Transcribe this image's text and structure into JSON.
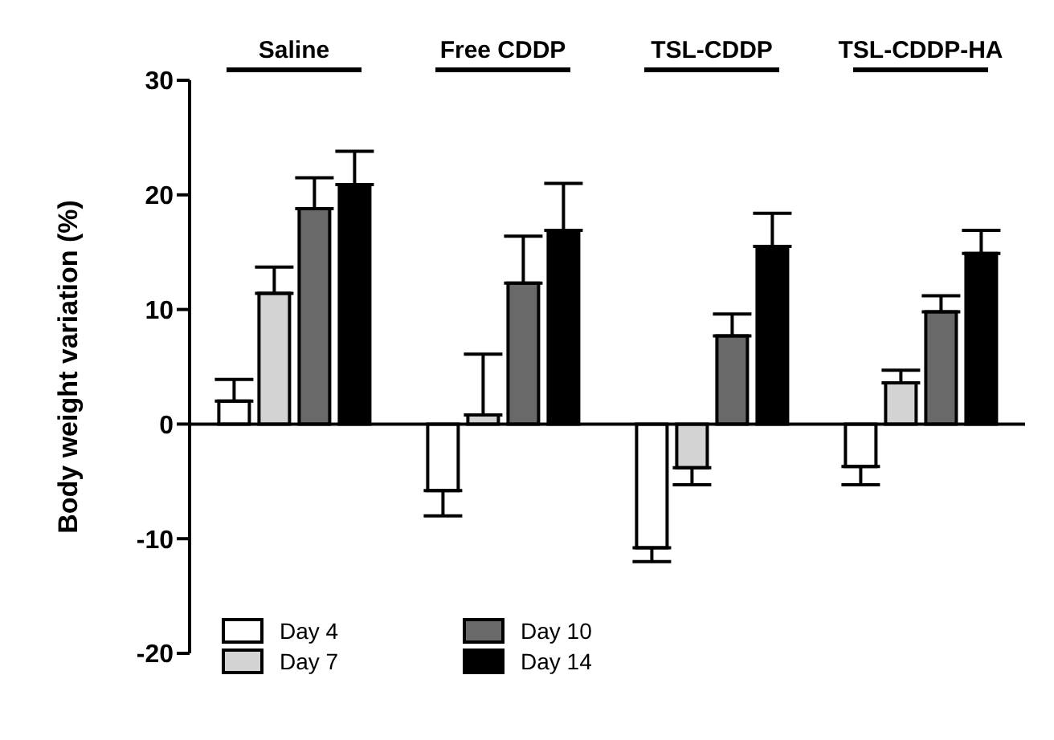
{
  "chart_data": {
    "type": "bar",
    "ylabel": "Body weight variation (%)",
    "categories": [
      "Saline",
      "Free CDDP",
      "TSL-CDDP",
      "TSL-CDDP-HA"
    ],
    "series": [
      {
        "name": "Day 4",
        "color": "#ffffff",
        "values": [
          2.0,
          -5.8,
          -10.8,
          -3.7
        ],
        "errors": [
          [
            2.0,
            3.9
          ],
          [
            -8.0,
            -5.8
          ],
          [
            -12.0,
            -10.8
          ],
          [
            -5.3,
            -3.7
          ]
        ]
      },
      {
        "name": "Day 7",
        "color": "#d3d3d3",
        "values": [
          11.4,
          0.8,
          -3.8,
          3.6
        ],
        "errors": [
          [
            11.4,
            13.7
          ],
          [
            0.8,
            6.1
          ],
          [
            -5.3,
            -3.8
          ],
          [
            3.6,
            4.7
          ]
        ]
      },
      {
        "name": "Day 10",
        "color": "#696969",
        "values": [
          18.8,
          12.3,
          7.7,
          9.8
        ],
        "errors": [
          [
            18.8,
            21.5
          ],
          [
            12.3,
            16.4
          ],
          [
            7.7,
            9.6
          ],
          [
            9.8,
            11.2
          ]
        ]
      },
      {
        "name": "Day 14",
        "color": "#000000",
        "values": [
          20.9,
          16.9,
          15.5,
          14.9
        ],
        "errors": [
          [
            20.9,
            23.8
          ],
          [
            16.9,
            21.0
          ],
          [
            15.5,
            18.4
          ],
          [
            14.9,
            16.9
          ]
        ]
      }
    ],
    "ylim": [
      -20,
      30
    ],
    "yticks": [
      -20,
      -10,
      0,
      10,
      20,
      30
    ],
    "ref_lines": [
      {
        "axis": "y",
        "value": 0
      }
    ],
    "grid": false,
    "legend": "bottom left"
  }
}
